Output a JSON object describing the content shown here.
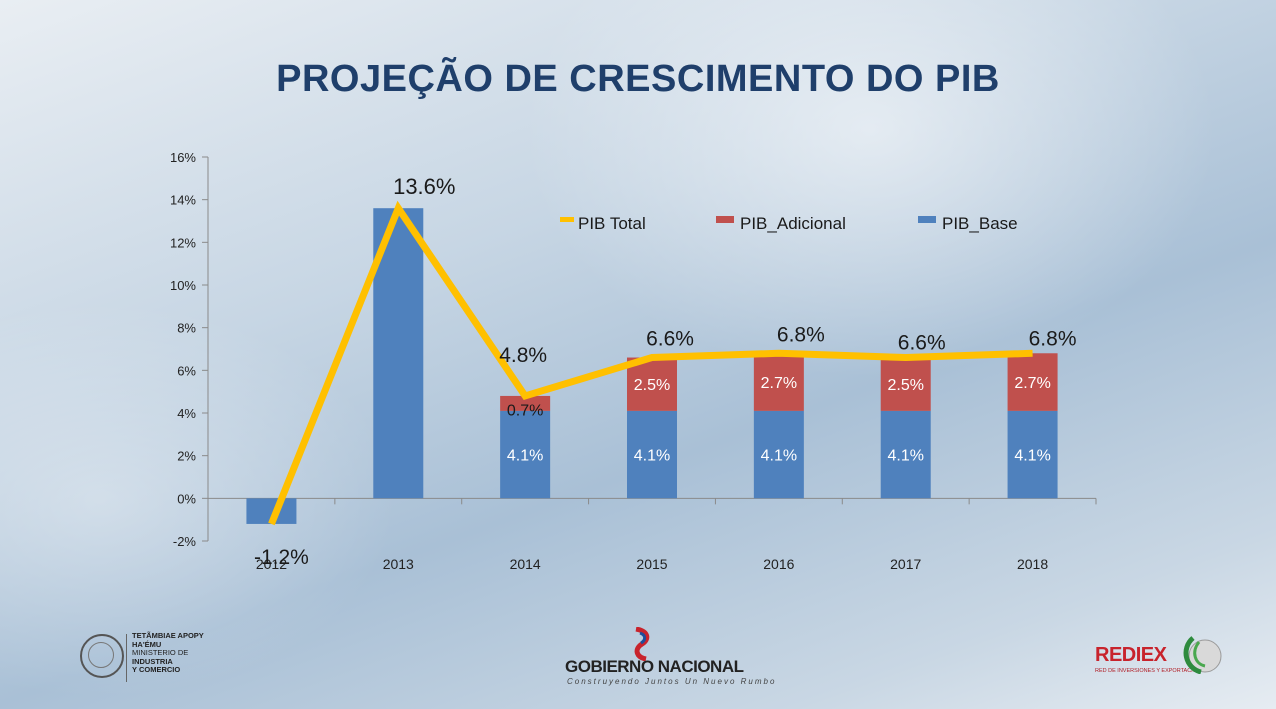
{
  "title": "PROJEÇÃO DE CRESCIMENTO DO PIB",
  "chart_data": {
    "type": "bar",
    "stacked": true,
    "categories": [
      "2012",
      "2013",
      "2014",
      "2015",
      "2016",
      "2017",
      "2018"
    ],
    "ylim": [
      -2,
      16
    ],
    "yticks": [
      -2,
      0,
      2,
      4,
      6,
      8,
      10,
      12,
      14,
      16
    ],
    "ytick_labels": [
      "-2%",
      "0%",
      "2%",
      "4%",
      "6%",
      "8%",
      "10%",
      "12%",
      "14%",
      "16%"
    ],
    "legend_position": "top-right",
    "series": [
      {
        "name": "PIB_Base",
        "kind": "bar",
        "color": "#4f81bd",
        "values": [
          -1.2,
          13.6,
          4.1,
          4.1,
          4.1,
          4.1,
          4.1
        ],
        "labels": [
          "",
          "",
          "4.1%",
          "4.1%",
          "4.1%",
          "4.1%",
          "4.1%"
        ]
      },
      {
        "name": "PIB_Adicional",
        "kind": "bar",
        "color": "#c0504d",
        "values": [
          0,
          0,
          0.7,
          2.5,
          2.7,
          2.5,
          2.7
        ],
        "labels": [
          "",
          "",
          "0.7%",
          "2.5%",
          "2.7%",
          "2.5%",
          "2.7%"
        ]
      },
      {
        "name": "PIB Total",
        "kind": "line",
        "color": "#ffc000",
        "values": [
          -1.2,
          13.6,
          4.8,
          6.6,
          6.8,
          6.6,
          6.8
        ],
        "labels": [
          "-1.2%",
          "13.6%",
          "4.8%",
          "6.6%",
          "6.8%",
          "6.6%",
          "6.8%"
        ]
      }
    ],
    "legend": [
      {
        "name": "PIB Total",
        "color": "#ffc000",
        "kind": "line"
      },
      {
        "name": "PIB_Adicional",
        "color": "#c0504d",
        "kind": "bar"
      },
      {
        "name": "PIB_Base",
        "color": "#4f81bd",
        "kind": "bar"
      }
    ]
  },
  "footer": {
    "left_logo": {
      "lines": [
        "TETÃMBIAE APOPY",
        "HA'ÉMU",
        "MINISTERIO DE",
        "INDUSTRIA",
        "Y COMERCIO"
      ]
    },
    "center_logo": {
      "name": "GOBIERNO NACIONAL",
      "tagline": "Construyendo Juntos Un Nuevo Rumbo"
    },
    "right_logo": {
      "name": "REDIEX",
      "tagline": "RED DE INVERSIONES Y EXPORTACIONES"
    }
  },
  "colors": {
    "title": "#1f3f6b",
    "axis": "#8a8a8a",
    "label_text": "#1a1a1a",
    "bar_label_text": "#ffffff"
  }
}
